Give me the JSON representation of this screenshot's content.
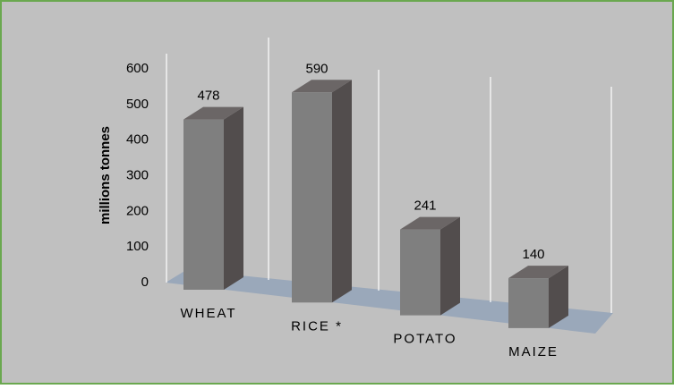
{
  "chart_data": {
    "type": "bar3d",
    "categories": [
      "WHEAT",
      "RICE *",
      "POTATO",
      "MAIZE"
    ],
    "values": [
      478,
      590,
      241,
      140
    ],
    "color": "#7f7f7f",
    "y_label": "millions tonnes",
    "ylim": [
      0,
      600
    ],
    "yticks": [
      0,
      100,
      200,
      300,
      400,
      500,
      600
    ]
  }
}
